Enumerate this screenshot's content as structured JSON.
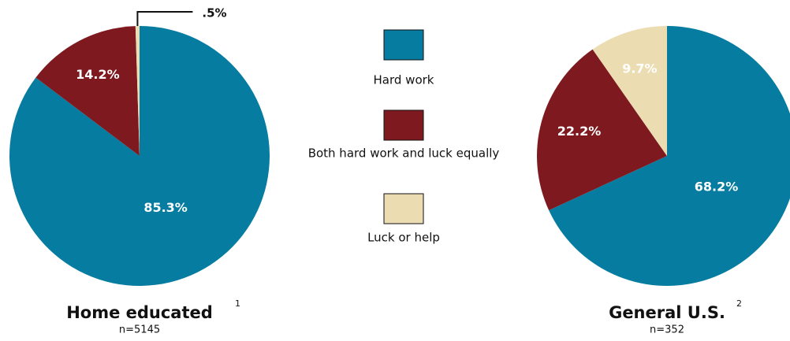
{
  "chart_data": [
    {
      "type": "pie",
      "title": "Home educated",
      "title_note": "1",
      "subtitle": "n=5145",
      "categories": [
        "Hard work",
        "Both hard work and luck equally",
        "Luck or help"
      ],
      "values": [
        85.3,
        14.2,
        0.5
      ],
      "value_labels": [
        "85.3%",
        "14.2%",
        ".5%"
      ],
      "colors": [
        "#067ca0",
        "#7e1a1f",
        "#ecdcb2"
      ]
    },
    {
      "type": "pie",
      "title": "General U.S.",
      "title_note": "2",
      "subtitle": "n=352",
      "categories": [
        "Hard work",
        "Both hard work and luck equally",
        "Luck or help"
      ],
      "values": [
        68.2,
        22.2,
        9.7
      ],
      "value_labels": [
        "68.2%",
        "22.2%",
        "9.7%"
      ],
      "colors": [
        "#067ca0",
        "#7e1a1f",
        "#ecdcb2"
      ]
    }
  ]
}
